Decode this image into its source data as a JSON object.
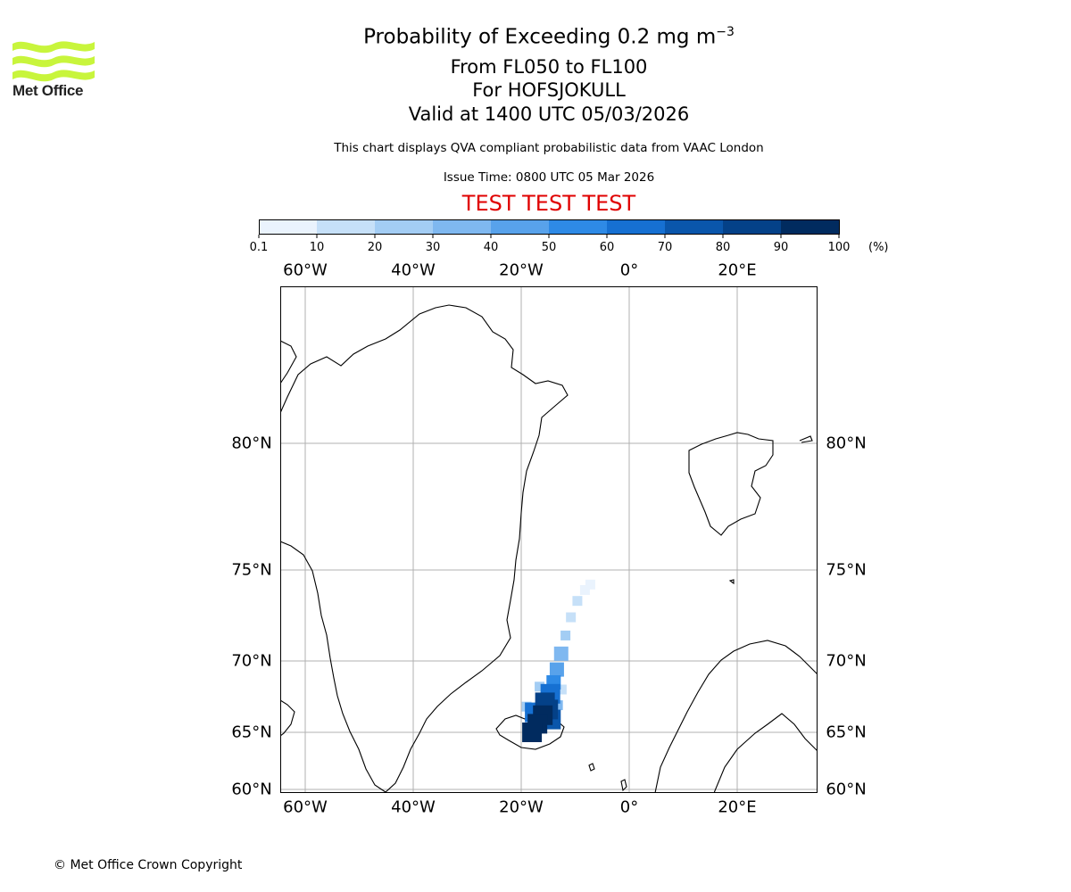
{
  "logo": {
    "text": "Met Office",
    "icon": "met-office-wave-logo",
    "color": "#c8f53c"
  },
  "title": {
    "main_prefix": "Probability of Exceeding 0.2 mg m",
    "main_exp": "−3",
    "levels": "From FL050 to FL100",
    "volcano": "For HOFSJOKULL",
    "valid": "Valid at 1400 UTC 05/03/2026"
  },
  "subtitle": {
    "description": "This chart displays QVA compliant probabilistic data from VAAC London",
    "issue_time": "Issue Time: 0800 UTC 05 Mar 2026",
    "test_banner": "TEST TEST TEST",
    "test_color": "#e00000"
  },
  "colorbar": {
    "labels": [
      "0.1",
      "10",
      "20",
      "30",
      "40",
      "50",
      "60",
      "70",
      "80",
      "90",
      "100"
    ],
    "unit": "(%)",
    "colors": [
      "#eaf3fd",
      "#c6e0f8",
      "#a3cdf4",
      "#7fb8f0",
      "#58a2eb",
      "#2e8ae6",
      "#1670d2",
      "#0a56ab",
      "#044188",
      "#012b5f"
    ]
  },
  "map": {
    "lon_labels": [
      "60°W",
      "40°W",
      "20°W",
      "0°",
      "20°E"
    ],
    "lon_values": [
      -60,
      -40,
      -20,
      0,
      20
    ],
    "lat_labels": [
      "80°N",
      "75°N",
      "70°N",
      "65°N",
      "60°N"
    ],
    "lat_values": [
      80,
      75,
      70,
      65,
      60
    ],
    "ash_cells": [
      {
        "lon": -18.0,
        "lat": 65.0,
        "p": 95
      },
      {
        "lon": -17.0,
        "lat": 65.6,
        "p": 92
      },
      {
        "lon": -16.0,
        "lat": 66.2,
        "p": 90
      },
      {
        "lon": -15.0,
        "lat": 66.6,
        "p": 85
      },
      {
        "lon": -14.5,
        "lat": 65.9,
        "p": 75
      },
      {
        "lon": -17.5,
        "lat": 66.4,
        "p": 65
      },
      {
        "lon": -15.6,
        "lat": 67.1,
        "p": 82
      },
      {
        "lon": -14.6,
        "lat": 67.7,
        "p": 68
      },
      {
        "lon": -14.0,
        "lat": 68.5,
        "p": 55
      },
      {
        "lon": -13.4,
        "lat": 69.4,
        "p": 45
      },
      {
        "lon": -12.6,
        "lat": 70.4,
        "p": 32
      },
      {
        "lon": -11.8,
        "lat": 71.4,
        "p": 22
      },
      {
        "lon": -10.8,
        "lat": 72.4,
        "p": 15
      },
      {
        "lon": -9.6,
        "lat": 73.3,
        "p": 10
      },
      {
        "lon": -8.2,
        "lat": 73.9,
        "p": 6
      },
      {
        "lon": -7.2,
        "lat": 74.2,
        "p": 4
      },
      {
        "lon": -19.0,
        "lat": 66.8,
        "p": 25
      },
      {
        "lon": -13.2,
        "lat": 66.9,
        "p": 30
      },
      {
        "lon": -16.6,
        "lat": 68.2,
        "p": 20
      },
      {
        "lon": -12.5,
        "lat": 68.0,
        "p": 15
      }
    ]
  },
  "footer": {
    "copyright": "© Met Office Crown Copyright"
  }
}
